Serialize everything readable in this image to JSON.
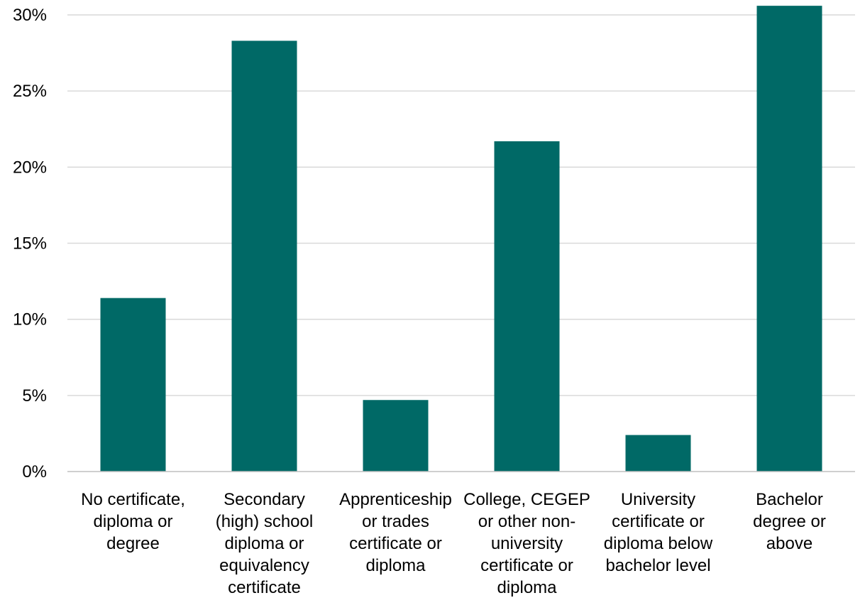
{
  "chart_data": {
    "type": "bar",
    "title": "",
    "xlabel": "",
    "ylabel": "",
    "categories": [
      [
        "No certificate,",
        "diploma or",
        "degree"
      ],
      [
        "Secondary",
        "(high) school",
        "diploma or",
        "equivalency",
        "certificate"
      ],
      [
        "Apprenticeship",
        "or trades",
        "certificate or",
        "diploma"
      ],
      [
        "College, CEGEP",
        "or other non-",
        "university",
        "certificate or",
        "diploma"
      ],
      [
        "University",
        "certificate or",
        "diploma below",
        "bachelor level"
      ],
      [
        "Bachelor",
        "degree or",
        "above"
      ]
    ],
    "values": [
      11.4,
      28.3,
      4.7,
      21.7,
      2.4,
      30.6
    ],
    "ylim": [
      0,
      30
    ],
    "yticks": [
      0,
      5,
      10,
      15,
      20,
      25,
      30
    ],
    "ytick_labels": [
      "0%",
      "5%",
      "10%",
      "15%",
      "20%",
      "25%",
      "30%"
    ],
    "grid": true,
    "colors": {
      "bar": "#006966",
      "grid": "#d9d9d9",
      "axis": "#bfbfbf",
      "text": "#000000"
    }
  }
}
